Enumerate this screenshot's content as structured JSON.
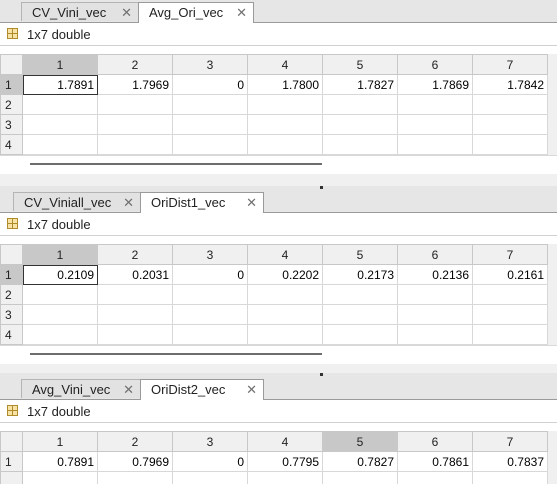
{
  "panels": [
    {
      "tabs": [
        {
          "label": "CV_Vini_vec",
          "active": false
        },
        {
          "label": "Avg_Ori_vec",
          "active": true
        }
      ],
      "size_label": "1x7 double",
      "columns": [
        "1",
        "2",
        "3",
        "4",
        "5",
        "6",
        "7"
      ],
      "rows": [
        {
          "index": "1",
          "cells": [
            "1.7891",
            "1.7969",
            "0",
            "1.7800",
            "1.7827",
            "1.7869",
            "1.7842"
          ]
        },
        {
          "index": "2",
          "cells": [
            "",
            "",
            "",
            "",
            "",
            "",
            ""
          ]
        },
        {
          "index": "3",
          "cells": [
            "",
            "",
            "",
            "",
            "",
            "",
            ""
          ]
        },
        {
          "index": "4",
          "cells": [
            "",
            "",
            "",
            "",
            "",
            "",
            ""
          ]
        }
      ]
    },
    {
      "tabs": [
        {
          "label": "CV_Viniall_vec",
          "active": false
        },
        {
          "label": "OriDist1_vec",
          "active": true
        }
      ],
      "size_label": "1x7 double",
      "columns": [
        "1",
        "2",
        "3",
        "4",
        "5",
        "6",
        "7"
      ],
      "rows": [
        {
          "index": "1",
          "cells": [
            "0.2109",
            "0.2031",
            "0",
            "0.2202",
            "0.2173",
            "0.2136",
            "0.2161"
          ]
        },
        {
          "index": "2",
          "cells": [
            "",
            "",
            "",
            "",
            "",
            "",
            ""
          ]
        },
        {
          "index": "3",
          "cells": [
            "",
            "",
            "",
            "",
            "",
            "",
            ""
          ]
        },
        {
          "index": "4",
          "cells": [
            "",
            "",
            "",
            "",
            "",
            "",
            ""
          ]
        }
      ]
    },
    {
      "tabs": [
        {
          "label": "Avg_Vini_vec",
          "active": false
        },
        {
          "label": "OriDist2_vec",
          "active": true
        }
      ],
      "size_label": "1x7 double",
      "columns": [
        "1",
        "2",
        "3",
        "4",
        "5",
        "6",
        "7"
      ],
      "rows": [
        {
          "index": "1",
          "cells": [
            "0.7891",
            "0.7969",
            "0",
            "0.7795",
            "0.7827",
            "0.7861",
            "0.7837"
          ]
        }
      ]
    }
  ],
  "close_glyph": "✕",
  "icons": {
    "variable": "matrix-variable-icon",
    "close": "close-icon"
  }
}
